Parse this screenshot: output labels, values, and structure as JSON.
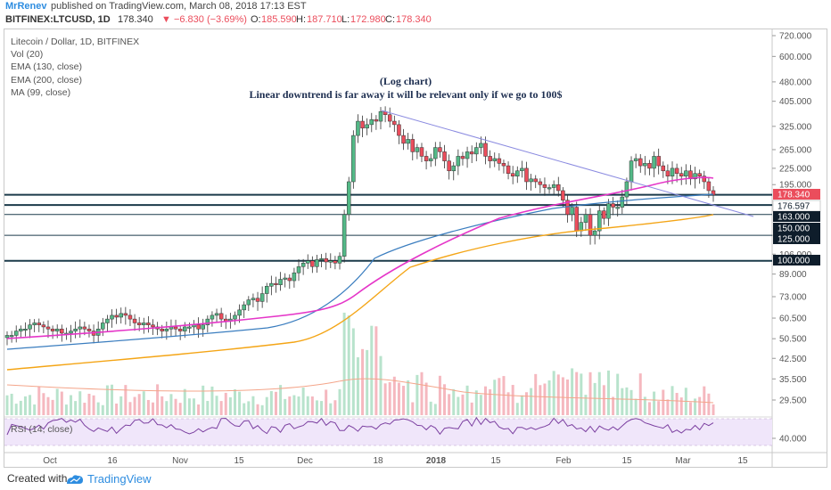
{
  "header": {
    "user": "MrRenev",
    "published": "published on TradingView.com, March 08, 2018 17:13 EST",
    "symbol": "BITFINEX:LTCUSD, 1D",
    "last": "178.340",
    "change": "▼ −6.830 (−3.69%)",
    "open_label": "O:",
    "open": "185.590",
    "high_label": "H:",
    "high": "187.710",
    "low_label": "L:",
    "low": "172.980",
    "close_label": "C:",
    "close": "178.340"
  },
  "legend": [
    "Litecoin / Dollar, 1D, BITFINEX",
    "Vol (20)",
    "EMA (130, close)",
    "EMA (200, close)",
    "MA (99, close)"
  ],
  "annotation": {
    "line1": "(Log chart)",
    "line2": "Linear downtrend is far away it will be relevant only if we go to 100$"
  },
  "rsi_label": "RSI (14, close)",
  "footer": {
    "created": "Created with",
    "brand": "TradingView"
  },
  "colors": {
    "up": "#53b987",
    "down": "#eb4d5c",
    "ema130": "#3a7dbf",
    "ema200": "#f4a516",
    "ma99": "#e535c8",
    "trendline": "#8a8ae0",
    "hline": "#1b3a4a",
    "rsi": "#7b3fa0",
    "price_badge": "#eb4d5c",
    "level_badge": "#0e1d2b"
  },
  "chart_data": {
    "type": "candlestick",
    "scale": "log",
    "price_axis_ticks": [
      720,
      600,
      480,
      405,
      325,
      265,
      225,
      195,
      163,
      125,
      106,
      89,
      73,
      60.5,
      50.5,
      42.5,
      35.5,
      29.5,
      40
    ],
    "price_axis_labels": [
      "720.000",
      "600.000",
      "480.000",
      "405.000",
      "325.000",
      "265.000",
      "225.000",
      "195.000",
      "163.000",
      "125.000",
      "106.000",
      "89.000",
      "73.000",
      "60.500",
      "50.500",
      "42.500",
      "35.500",
      "29.500",
      "40.000"
    ],
    "x_ticks": [
      "Oct",
      "16",
      "Nov",
      "15",
      "Dec",
      "18",
      "2018",
      "15",
      "Feb",
      "15",
      "Mar",
      "15"
    ],
    "price_levels": [
      {
        "value": 178.34,
        "label": "178.340",
        "kind": "last"
      },
      {
        "value": 176.597,
        "label": "176.597",
        "kind": "ma"
      },
      {
        "value": 163.0,
        "label": "163.000",
        "kind": "level"
      },
      {
        "value": 150.0,
        "label": "150.000",
        "kind": "level"
      },
      {
        "value": 125.0,
        "label": "125.000",
        "kind": "level"
      },
      {
        "value": 100.0,
        "label": "100.000",
        "kind": "level"
      }
    ],
    "trendline": {
      "from": {
        "date": "2017-12-19",
        "price": 370
      },
      "to": {
        "date": "2018-03-12",
        "price": 155
      }
    },
    "candles_close_approx": [
      52,
      52,
      54,
      55,
      55,
      57,
      58,
      57,
      56,
      55,
      54,
      55,
      53,
      53,
      54,
      55,
      56,
      55,
      54,
      52,
      55,
      58,
      60,
      62,
      61,
      63,
      62,
      60,
      58,
      57,
      58,
      57,
      56,
      55,
      54,
      55,
      56,
      55,
      54,
      56,
      56,
      57,
      55,
      57,
      60,
      62,
      63,
      60,
      59,
      60,
      62,
      65,
      68,
      71,
      72,
      70,
      75,
      80,
      82,
      81,
      85,
      86,
      84,
      90,
      95,
      98,
      100,
      95,
      101,
      102,
      99,
      100,
      98,
      104,
      150,
      200,
      300,
      340,
      320,
      330,
      345,
      340,
      370,
      360,
      340,
      330,
      300,
      280,
      290,
      260,
      270,
      250,
      240,
      245,
      270,
      260,
      240,
      220,
      230,
      250,
      245,
      260,
      255,
      270,
      280,
      250,
      240,
      245,
      235,
      230,
      215,
      210,
      220,
      225,
      200,
      205,
      200,
      195,
      190,
      190,
      195,
      185,
      170,
      150,
      160,
      130,
      140,
      150,
      125,
      130,
      155,
      145,
      165,
      160,
      160,
      175,
      200,
      240,
      245,
      230,
      235,
      225,
      250,
      230,
      220,
      210,
      225,
      215,
      210,
      220,
      205,
      215,
      210,
      200,
      185,
      178
    ],
    "indicators": [
      "EMA 130",
      "EMA 200",
      "MA 99",
      "Vol 20",
      "RSI 14"
    ]
  }
}
